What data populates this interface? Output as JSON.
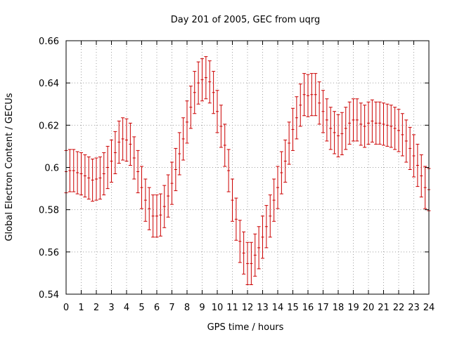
{
  "chart_data": {
    "type": "scatter",
    "title": "Day 201 of 2005, GEC from uqrg",
    "xlabel": "GPS time / hours",
    "ylabel": "Global Electron Content / GECUs",
    "xlim": [
      0,
      24
    ],
    "ylim": [
      0.54,
      0.66
    ],
    "x_ticks": [
      "0",
      "1",
      "2",
      "3",
      "4",
      "5",
      "6",
      "7",
      "8",
      "9",
      "10",
      "11",
      "12",
      "13",
      "14",
      "15",
      "16",
      "17",
      "18",
      "19",
      "20",
      "21",
      "22",
      "23",
      "24"
    ],
    "y_ticks": [
      "0.54",
      "0.56",
      "0.58",
      "0.6",
      "0.62",
      "0.64",
      "0.66"
    ],
    "grid": true,
    "error_bar": 0.01,
    "series": [
      {
        "color": "#cc0000",
        "x": [
          0,
          0.25,
          0.5,
          0.75,
          1,
          1.25,
          1.5,
          1.75,
          2,
          2.25,
          2.5,
          2.75,
          3,
          3.25,
          3.5,
          3.75,
          4,
          4.25,
          4.5,
          4.75,
          5,
          5.25,
          5.5,
          5.75,
          6,
          6.25,
          6.5,
          6.75,
          7,
          7.25,
          7.5,
          7.75,
          8,
          8.25,
          8.5,
          8.75,
          9,
          9.25,
          9.5,
          9.75,
          10,
          10.25,
          10.5,
          10.75,
          11,
          11.25,
          11.5,
          11.75,
          12,
          12.25,
          12.5,
          12.75,
          13,
          13.25,
          13.5,
          13.75,
          14,
          14.25,
          14.5,
          14.75,
          15,
          15.25,
          15.5,
          15.75,
          16,
          16.25,
          16.5,
          16.75,
          17,
          17.25,
          17.5,
          17.75,
          18,
          18.25,
          18.5,
          18.75,
          19,
          19.25,
          19.5,
          19.75,
          20,
          20.25,
          20.5,
          20.75,
          21,
          21.25,
          21.5,
          21.75,
          22,
          22.25,
          22.5,
          22.75,
          23,
          23.25,
          23.5,
          23.75,
          24
        ],
        "y": [
          0.598,
          0.5985,
          0.5985,
          0.5975,
          0.597,
          0.596,
          0.595,
          0.594,
          0.5945,
          0.595,
          0.597,
          0.6,
          0.603,
          0.607,
          0.612,
          0.6135,
          0.613,
          0.611,
          0.6045,
          0.598,
          0.5905,
          0.5845,
          0.5805,
          0.577,
          0.577,
          0.5775,
          0.5815,
          0.5865,
          0.5925,
          0.599,
          0.6065,
          0.6135,
          0.6215,
          0.6285,
          0.6355,
          0.64,
          0.6415,
          0.6425,
          0.6405,
          0.6355,
          0.6265,
          0.6195,
          0.6105,
          0.5985,
          0.5845,
          0.5755,
          0.565,
          0.5595,
          0.5545,
          0.5545,
          0.5585,
          0.562,
          0.567,
          0.572,
          0.577,
          0.5845,
          0.5905,
          0.5975,
          0.603,
          0.6115,
          0.618,
          0.6235,
          0.6295,
          0.6345,
          0.634,
          0.6345,
          0.6345,
          0.6305,
          0.6265,
          0.6225,
          0.6185,
          0.6165,
          0.615,
          0.616,
          0.6185,
          0.621,
          0.6225,
          0.6225,
          0.6205,
          0.6195,
          0.621,
          0.622,
          0.621,
          0.621,
          0.6205,
          0.62,
          0.6195,
          0.6185,
          0.6175,
          0.6155,
          0.6125,
          0.609,
          0.6055,
          0.601,
          0.596,
          0.5905,
          0.5895
        ]
      }
    ]
  }
}
